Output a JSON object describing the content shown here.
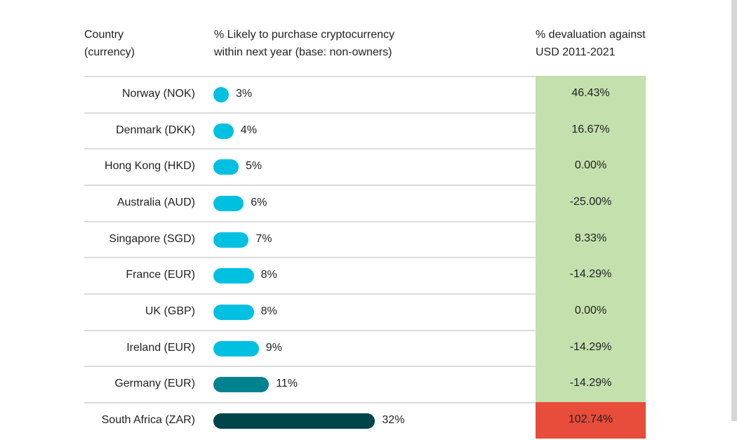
{
  "chart_data": {
    "type": "table",
    "columns": [
      "Country\n(currency)",
      "% Likely to purchase cryptocurrency within next year (base: non-owners)",
      "% devaluation against USD 2011-2021"
    ],
    "header": {
      "country_line1": "Country",
      "country_line2": "(currency)",
      "likely_line1": "% Likely to purchase cryptocurrency",
      "likely_line2": "within next year (base: non-owners)",
      "devaluation_line1": "% devaluation against",
      "devaluation_line2": "USD 2011-2021"
    },
    "rows": [
      {
        "country": "Norway (NOK)",
        "likely": 3,
        "likely_label": "3%",
        "devaluation": "46.43%",
        "bar_color": "#00c0e2",
        "cell_color": "#c3e0ad"
      },
      {
        "country": "Denmark (DKK)",
        "likely": 4,
        "likely_label": "4%",
        "devaluation": "16.67%",
        "bar_color": "#00c0e2",
        "cell_color": "#c3e0ad"
      },
      {
        "country": "Hong Kong (HKD)",
        "likely": 5,
        "likely_label": "5%",
        "devaluation": "0.00%",
        "bar_color": "#00c0e2",
        "cell_color": "#c3e0ad"
      },
      {
        "country": "Australia (AUD)",
        "likely": 6,
        "likely_label": "6%",
        "devaluation": "-25.00%",
        "bar_color": "#00c0e2",
        "cell_color": "#c3e0ad"
      },
      {
        "country": "Singapore (SGD)",
        "likely": 7,
        "likely_label": "7%",
        "devaluation": "8.33%",
        "bar_color": "#00c0e2",
        "cell_color": "#c3e0ad"
      },
      {
        "country": "France (EUR)",
        "likely": 8,
        "likely_label": "8%",
        "devaluation": "-14.29%",
        "bar_color": "#00c0e2",
        "cell_color": "#c3e0ad"
      },
      {
        "country": "UK (GBP)",
        "likely": 8,
        "likely_label": "8%",
        "devaluation": "0.00%",
        "bar_color": "#00c0e2",
        "cell_color": "#c3e0ad"
      },
      {
        "country": "Ireland (EUR)",
        "likely": 9,
        "likely_label": "9%",
        "devaluation": "-14.29%",
        "bar_color": "#00c0e2",
        "cell_color": "#c3e0ad"
      },
      {
        "country": "Germany (EUR)",
        "likely": 11,
        "likely_label": "11%",
        "devaluation": "-14.29%",
        "bar_color": "#00838f",
        "cell_color": "#c3e0ad"
      },
      {
        "country": "South Africa (ZAR)",
        "likely": 32,
        "likely_label": "32%",
        "devaluation": "102.74%",
        "bar_color": "#00454a",
        "cell_color": "#e84c3a"
      }
    ]
  }
}
